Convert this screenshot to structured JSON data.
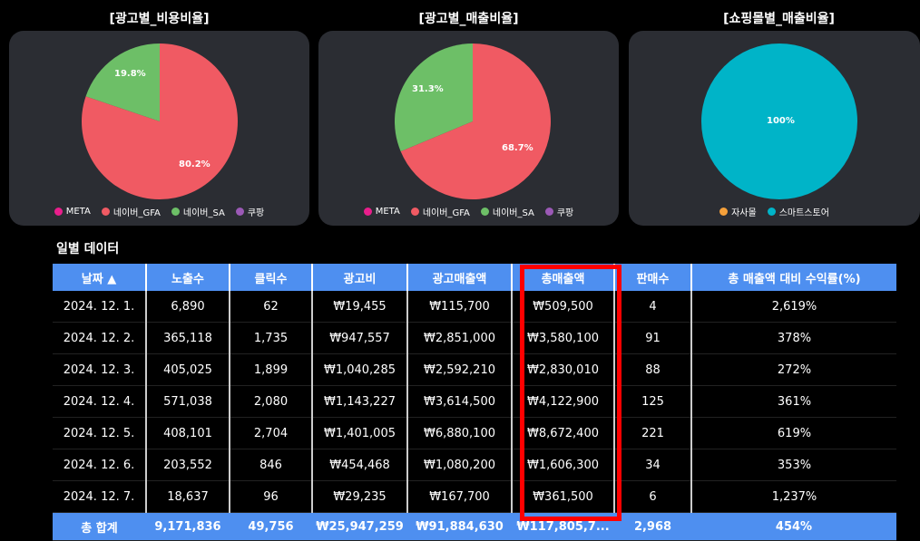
{
  "cards": [
    {
      "title": "[광고별_비용비율]",
      "legend": [
        {
          "label": "META",
          "color": "#e91e8c"
        },
        {
          "label": "네이버_GFA",
          "color": "#f05a63"
        },
        {
          "label": "네이버_SA",
          "color": "#6dbf67"
        },
        {
          "label": "쿠팡",
          "color": "#9b59b6"
        }
      ],
      "slices": [
        {
          "label": "80.2%",
          "value": 80.2,
          "color": "#f05a63"
        },
        {
          "label": "19.8%",
          "value": 19.8,
          "color": "#6dbf67"
        }
      ]
    },
    {
      "title": "[광고별_매출비율]",
      "legend": [
        {
          "label": "META",
          "color": "#e91e8c"
        },
        {
          "label": "네이버_GFA",
          "color": "#f05a63"
        },
        {
          "label": "네이버_SA",
          "color": "#6dbf67"
        },
        {
          "label": "쿠팡",
          "color": "#9b59b6"
        }
      ],
      "slices": [
        {
          "label": "68.7%",
          "value": 68.7,
          "color": "#f05a63"
        },
        {
          "label": "31.3%",
          "value": 31.3,
          "color": "#6dbf67"
        }
      ]
    },
    {
      "title": "[쇼핑몰별_매출비율]",
      "legend": [
        {
          "label": "자사몰",
          "color": "#f5a03a"
        },
        {
          "label": "스마트스토어",
          "color": "#00b4c8"
        }
      ],
      "slices": [
        {
          "label": "100%",
          "value": 100,
          "color": "#00b4c8"
        }
      ]
    }
  ],
  "table": {
    "title": "일별 데이터",
    "headers": [
      "날짜 ▲",
      "노출수",
      "클릭수",
      "광고비",
      "광고매출액",
      "총매출액",
      "판매수",
      "총 매출액 대비 수익률(%)"
    ],
    "rows": [
      [
        "2024. 12. 1.",
        "6,890",
        "62",
        "₩19,455",
        "₩115,700",
        "₩509,500",
        "4",
        "2,619%"
      ],
      [
        "2024. 12. 2.",
        "365,118",
        "1,735",
        "₩947,557",
        "₩2,851,000",
        "₩3,580,100",
        "91",
        "378%"
      ],
      [
        "2024. 12. 3.",
        "405,025",
        "1,899",
        "₩1,040,285",
        "₩2,592,210",
        "₩2,830,010",
        "88",
        "272%"
      ],
      [
        "2024. 12. 4.",
        "571,038",
        "2,080",
        "₩1,143,227",
        "₩3,614,500",
        "₩4,122,900",
        "125",
        "361%"
      ],
      [
        "2024. 12. 5.",
        "408,101",
        "2,704",
        "₩1,401,005",
        "₩6,880,100",
        "₩8,672,400",
        "221",
        "619%"
      ],
      [
        "2024. 12. 6.",
        "203,552",
        "846",
        "₩454,468",
        "₩1,080,200",
        "₩1,606,300",
        "34",
        "353%"
      ],
      [
        "2024. 12. 7.",
        "18,637",
        "96",
        "₩29,235",
        "₩167,700",
        "₩361,500",
        "6",
        "1,237%"
      ]
    ],
    "total": [
      "총 합계",
      "9,171,836",
      "49,756",
      "₩25,947,259",
      "₩91,884,630",
      "₩117,805,7...",
      "2,968",
      "454%"
    ]
  }
}
